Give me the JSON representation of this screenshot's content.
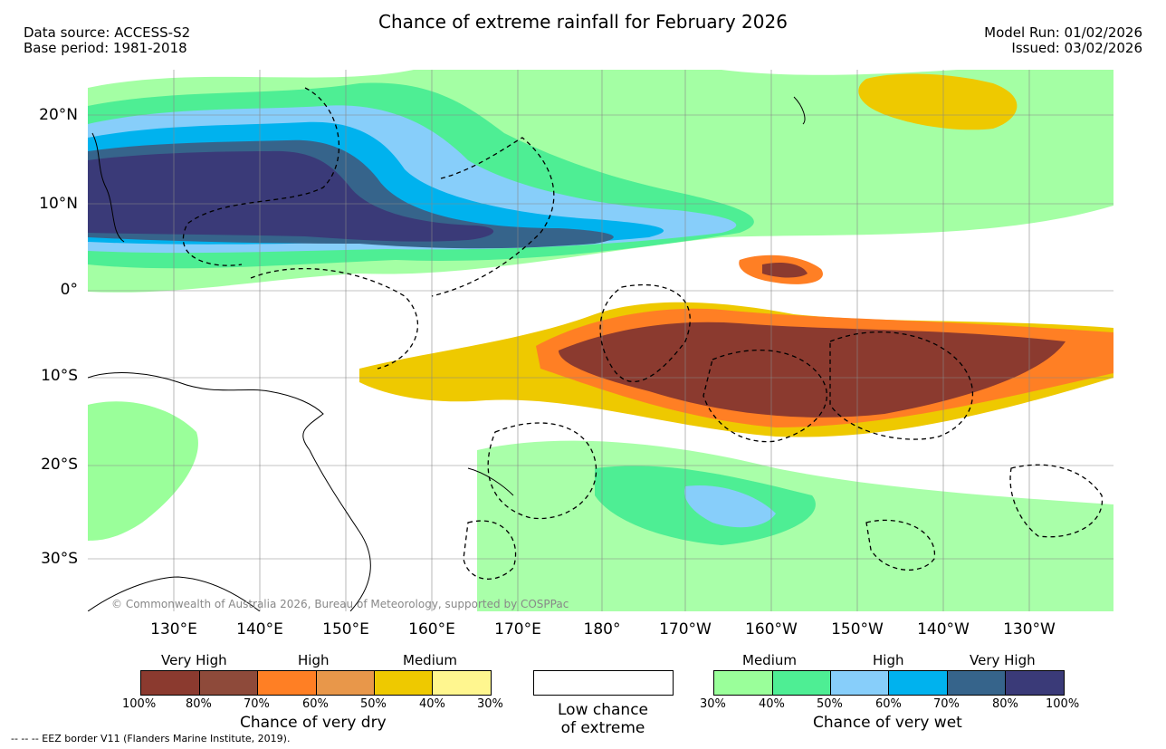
{
  "header": {
    "title": "Chance of extreme rainfall for February 2026",
    "data_source": "Data source: ACCESS-S2",
    "base_period": "Base period: 1981-2018",
    "model_run": "Model Run: 01/02/2026",
    "issued": "Issued: 03/02/2026"
  },
  "map": {
    "latitude_labels": [
      "20°N",
      "10°N",
      "0°",
      "10°S",
      "20°S",
      "30°S"
    ],
    "longitude_labels": [
      "130°E",
      "140°E",
      "150°E",
      "160°E",
      "170°E",
      "180°",
      "170°W",
      "160°W",
      "150°W",
      "140°W",
      "130°W"
    ],
    "copyright": "© Commonwealth of Australia 2026, Bureau of Meteorology, supported by COSPPac"
  },
  "legend_dry": {
    "title": "Chance of very dry",
    "categories": [
      "Very High",
      "High",
      "Medium"
    ],
    "colors": [
      "#8b3a2f",
      "#8e4a3a",
      "#ff7f24",
      "#e8974a",
      "#eec900",
      "#fff68f"
    ],
    "percent_labels": [
      "100%",
      "80%",
      "70%",
      "60%",
      "50%",
      "40%",
      "30%"
    ]
  },
  "legend_low": {
    "line1": "Low chance",
    "line2": "of extreme"
  },
  "legend_wet": {
    "title": "Chance of very wet",
    "categories": [
      "Medium",
      "High",
      "Very High"
    ],
    "colors": [
      "#9aff9a",
      "#4eee94",
      "#87cefa",
      "#00b2ee",
      "#36648b",
      "#3a3a78"
    ],
    "percent_labels": [
      "30%",
      "40%",
      "50%",
      "60%",
      "70%",
      "80%",
      "100%"
    ]
  },
  "footnote": "-- -- -- EEZ border V11 (Flanders Marine Institute, 2019)."
}
